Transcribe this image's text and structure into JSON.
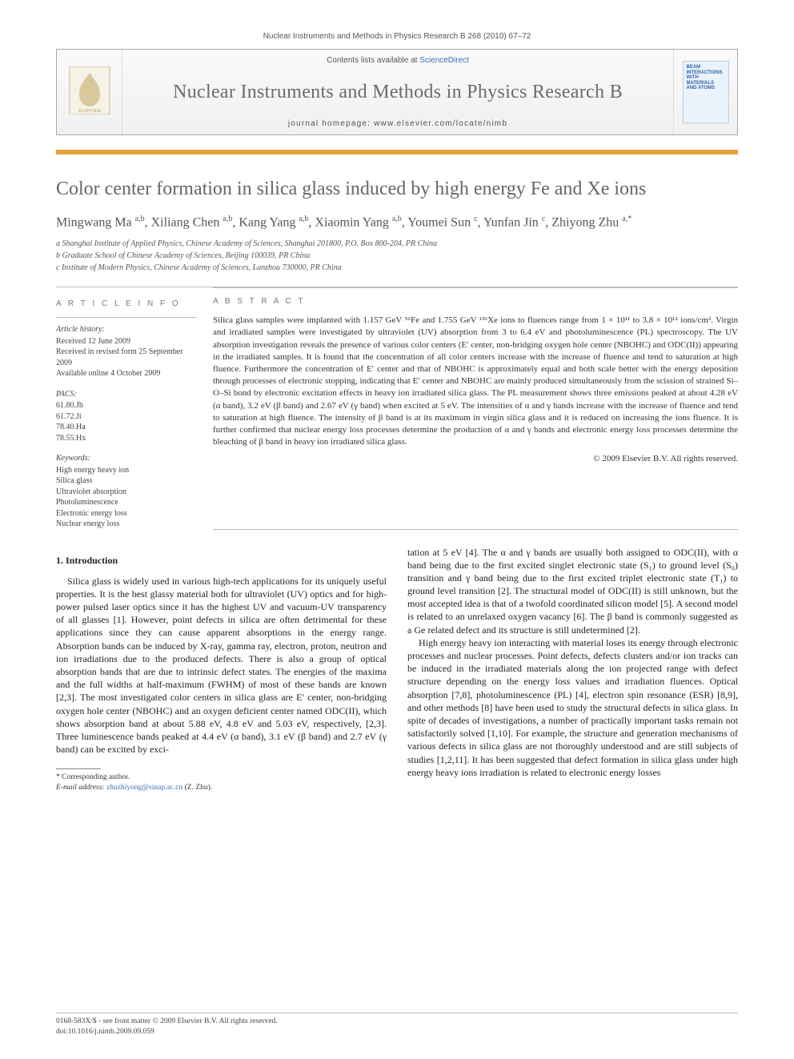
{
  "header": {
    "citation": "Nuclear Instruments and Methods in Physics Research B 268 (2010) 67–72"
  },
  "banner": {
    "contents_prefix": "Contents lists available at ",
    "contents_link": "ScienceDirect",
    "journal_name": "Nuclear Instruments and Methods in Physics Research B",
    "homepage_prefix": "journal homepage: ",
    "homepage_url": "www.elsevier.com/locate/nimb",
    "cover_text": "BEAM INTERACTIONS WITH MATERIALS AND ATOMS",
    "colors": {
      "orange_rule": "#e8a23a",
      "link": "#3b6fb6",
      "journal_gray": "#6b6b6b"
    }
  },
  "article": {
    "title": "Color center formation in silica glass induced by high energy Fe and Xe ions",
    "authors_html": "Mingwang Ma <sup>a,b</sup>, Xiliang Chen <sup>a,b</sup>, Kang Yang <sup>a,b</sup>, Xiaomin Yang <sup>a,b</sup>, Youmei Sun <sup>c</sup>, Yunfan Jin <sup>c</sup>, Zhiyong Zhu <sup>a,*</sup>",
    "affiliations": [
      "a Shanghai Institute of Applied Physics, Chinese Academy of Sciences, Shanghai 201800, P.O. Box 800-204, PR China",
      "b Graduate School of Chinese Academy of Sciences, Beijing 100039, PR China",
      "c Institute of Modern Physics, Chinese Academy of Sciences, Lanzhou 730000, PR China"
    ]
  },
  "info": {
    "article_info_heading": "A R T I C L E   I N F O",
    "abstract_heading": "A B S T R A C T",
    "history_label": "Article history:",
    "history": [
      "Received 12 June 2009",
      "Received in revised form 25 September 2009",
      "Available online 4 October 2009"
    ],
    "pacs_label": "PACS:",
    "pacs": [
      "61.80.Jh",
      "61.72.Ji",
      "78.40.Ha",
      "78.55.Hx"
    ],
    "keywords_label": "Keywords:",
    "keywords": [
      "High energy heavy ion",
      "Silica glass",
      "Ultraviolet absorption",
      "Photoluminescence",
      "Electronic energy loss",
      "Nuclear energy loss"
    ],
    "abstract": "Silica glass samples were implanted with 1.157 GeV ⁵⁶Fe and 1.755 GeV ¹³⁶Xe ions to fluences range from 1 × 10¹¹ to 3.8 × 10¹² ions/cm². Virgin and irradiated samples were investigated by ultraviolet (UV) absorption from 3 to 6.4 eV and photoluminescence (PL) spectroscopy. The UV absorption investigation reveals the presence of various color centers (E′ center, non-bridging oxygen hole center (NBOHC) and ODC(II)) appearing in the irradiated samples. It is found that the concentration of all color centers increase with the increase of fluence and tend to saturation at high fluence. Furthermore the concentration of E′ center and that of NBOHC is approximately equal and both scale better with the energy deposition through processes of electronic stopping, indicating that E′ center and NBOHC are mainly produced simultaneously from the scission of strained Si–O–Si bond by electronic excitation effects in heavy ion irradiated silica glass. The PL measurement shows three emissions peaked at about 4.28 eV (α band), 3.2 eV (β band) and 2.67 eV (γ band) when excited at 5 eV. The intensities of α and γ bands increase with the increase of fluence and tend to saturation at high fluence. The intensity of β band is at its maximum in virgin silica glass and it is reduced on increasing the ions fluence. It is further confirmed that nuclear energy loss processes determine the production of α and γ bands and electronic energy loss processes determine the bleaching of β band in heavy ion irradiated silica glass.",
    "copyright": "© 2009 Elsevier B.V. All rights reserved."
  },
  "body": {
    "section_head": "1. Introduction",
    "col1": "Silica glass is widely used in various high-tech applications for its uniquely useful properties. It is the best glassy material both for ultraviolet (UV) optics and for high-power pulsed laser optics since it has the highest UV and vacuum-UV transparency of all glasses [1]. However, point defects in silica are often detrimental for these applications since they can cause apparent absorptions in the energy range. Absorption bands can be induced by X-ray, gamma ray, electron, proton, neutron and ion irradiations due to the produced defects. There is also a group of optical absorption bands that are due to intrinsic defect states. The energies of the maxima and the full widths at half-maximum (FWHM) of most of these bands are known [2,3]. The most investigated color centers in silica glass are E′ center, non-bridging oxygen hole center (NBOHC) and an oxygen deficient center named ODC(II), which shows absorption band at about 5.88 eV, 4.8 eV and 5.03 eV, respectively, [2,3]. Three luminescence bands peaked at 4.4 eV (α band), 3.1 eV (β band) and 2.7 eV (γ band) can be excited by exci-",
    "col2a": "tation at 5 eV [4]. The α and γ bands are usually both assigned to ODC(II), with α band being due to the first excited singlet electronic state (S₁) to ground level (S₀) transition and γ band being due to the first excited triplet electronic state (T₁) to ground level transition [2]. The structural model of ODC(II) is still unknown, but the most accepted idea is that of a twofold coordinated silicon model [5]. A second model is related to an unrelaxed oxygen vacancy [6]. The β band is commonly suggested as a Ge related defect and its structure is still undetermined [2].",
    "col2b": "High energy heavy ion interacting with material loses its energy through electronic processes and nuclear processes. Point defects, defects clusters and/or ion tracks can be induced in the irradiated materials along the ion projected range with defect structure depending on the energy loss values and irradiation fluences. Optical absorption [7,8], photoluminescence (PL) [4], electron spin resonance (ESR) [8,9], and other methods [8] have been used to study the structural defects in silica glass. In spite of decades of investigations, a number of practically important tasks remain not satisfactorily solved [1,10]. For example, the structure and generation mechanisms of various defects in silica glass are not thoroughly understood and are still subjects of studies [1,2,11]. It has been suggested that defect formation in silica glass under high energy heavy ions irradiation is related to electronic energy losses"
  },
  "footnotes": {
    "corr": "* Corresponding author.",
    "email_label": "E-mail address:",
    "email": "zhuzhiyong@sinap.ac.cn",
    "email_who": "(Z. Zhu)."
  },
  "footer": {
    "line1": "0168-583X/$ - see front matter © 2009 Elsevier B.V. All rights reserved.",
    "line2": "doi:10.1016/j.nimb.2009.09.059"
  }
}
